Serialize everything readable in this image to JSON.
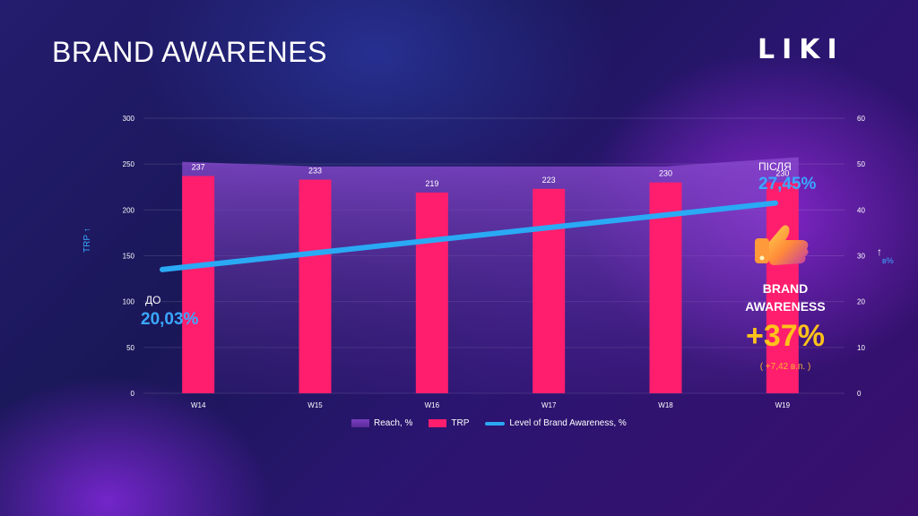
{
  "page": {
    "title": "BRAND AWARENES",
    "logo": "LIKI"
  },
  "chart_data": {
    "type": "bar",
    "categories": [
      "W14",
      "W15",
      "W16",
      "W17",
      "W18",
      "W19"
    ],
    "series": [
      {
        "name": "Reach, %",
        "type": "area",
        "axis": "right",
        "values": [
          50.5,
          49.5,
          49.5,
          49.5,
          49.5,
          51.5
        ]
      },
      {
        "name": "TRP",
        "type": "bar",
        "axis": "left",
        "values": [
          237,
          233,
          219,
          223,
          230,
          230
        ],
        "data_labels": [
          "237",
          "233",
          "219",
          "223",
          "230",
          "230"
        ]
      },
      {
        "name": "Level of Brand Awareness, %",
        "type": "line",
        "axis": "right",
        "start": 27.0,
        "end": 41.5
      }
    ],
    "ylabel_left": "TRP",
    "ylabel_right": "в%",
    "ylim_left": [
      0,
      300
    ],
    "ylim_right": [
      0,
      60
    ],
    "yticks_left": [
      "0",
      "50",
      "100",
      "150",
      "200",
      "250",
      "300"
    ],
    "yticks_right": [
      "0",
      "10",
      "20",
      "30",
      "40",
      "50",
      "60"
    ],
    "grid": true,
    "legend": "bottom"
  },
  "annotations": {
    "before_label": "ДО",
    "before_value": "20,03%",
    "after_label": "ПІСЛЯ",
    "after_value": "27,45%",
    "brand_line1": "BRAND",
    "brand_line2": "AWARENESS",
    "growth": "+37%",
    "growth_note": "( +7,42 в.п. )"
  },
  "colors": {
    "bar": "#ff1e6e",
    "line": "#2aa9f5",
    "reach": "#7a3fc0",
    "accent_blue": "#3aa8ff",
    "growth": "#ffc21a"
  }
}
